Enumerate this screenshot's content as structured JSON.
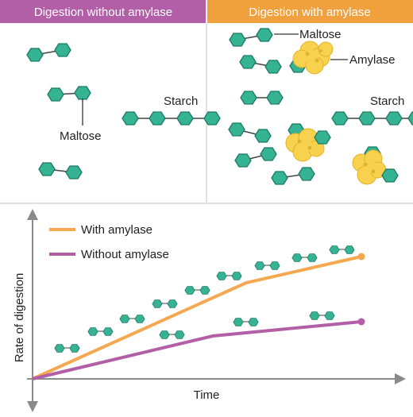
{
  "panels": {
    "left": {
      "title": "Digestion without amylase",
      "color": "#b35fa8"
    },
    "right": {
      "title": "Digestion with amylase",
      "color": "#f0a03c"
    }
  },
  "labels": {
    "maltose": "Maltose",
    "starch": "Starch",
    "amylase": "Amylase"
  },
  "graph": {
    "ylabel": "Rate of digestion",
    "xlabel": "Time",
    "legend": [
      {
        "label": "With amylase",
        "color": "#f5a850"
      },
      {
        "label": "Without amylase",
        "color": "#b35fa8"
      }
    ]
  },
  "colors": {
    "hexagon": "#35b393",
    "hexagon_stroke": "#1c7a63",
    "enzyme": "#f8d24e",
    "enzyme_dark": "#e3b22b",
    "divider": "#e2e2e2",
    "axis": "#8a8a8a"
  }
}
